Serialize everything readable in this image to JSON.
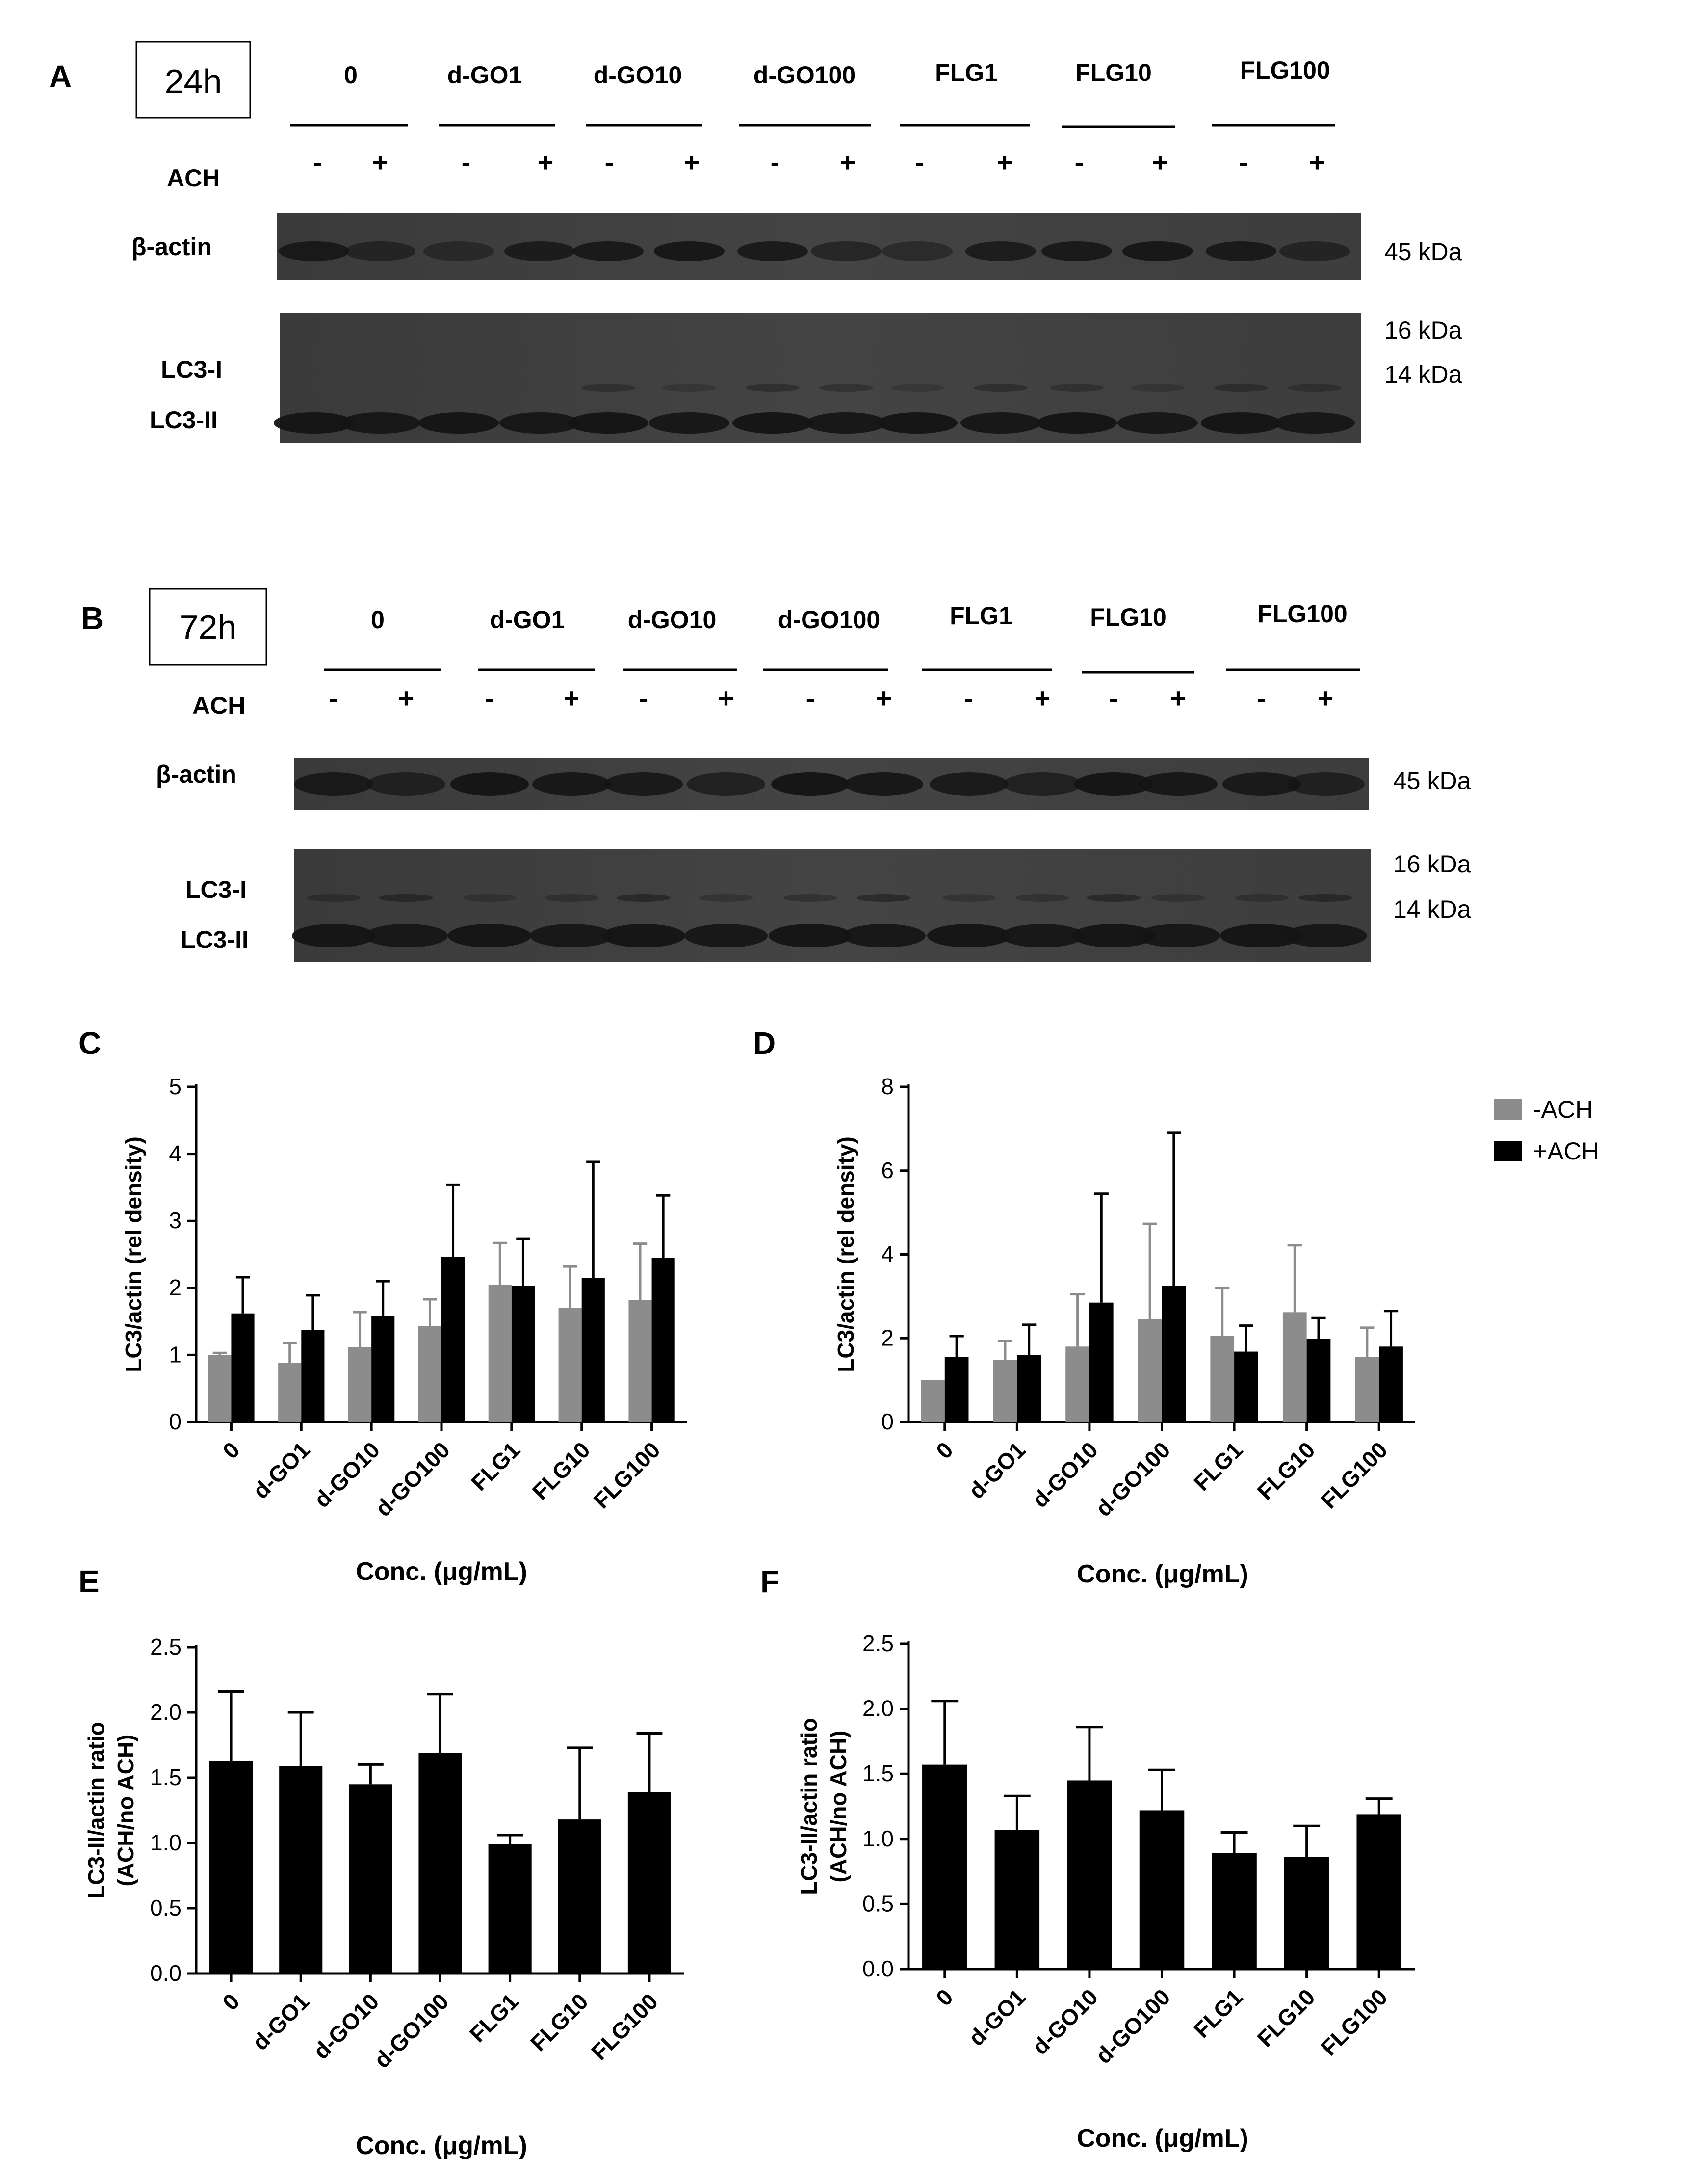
{
  "figure": {
    "panel_a": {
      "letter": "A",
      "timepoint": "24h",
      "groups": [
        "0",
        "d-GO1",
        "d-GO10",
        "d-GO100",
        "FLG1",
        "FLG10",
        "FLG100"
      ],
      "treatment_label": "ACH",
      "minus": "-",
      "plus": "+",
      "actin_label": "β-actin",
      "lc3i_label": "LC3-I",
      "lc3ii_label": "LC3-II",
      "mw_actin": "45 kDa",
      "mw_16": "16 kDa",
      "mw_14": "14 kDa"
    },
    "panel_b": {
      "letter": "B",
      "timepoint": "72h",
      "groups": [
        "0",
        "d-GO1",
        "d-GO10",
        "d-GO100",
        "FLG1",
        "FLG10",
        "FLG100"
      ],
      "treatment_label": "ACH",
      "minus": "-",
      "plus": "+",
      "actin_label": "β-actin",
      "lc3i_label": "LC3-I",
      "lc3ii_label": "LC3-II",
      "mw_actin": "45 kDa",
      "mw_16": "16 kDa",
      "mw_14": "14 kDa"
    },
    "legend": {
      "items": [
        {
          "label": "-ACH",
          "color": "#8c8c8c"
        },
        {
          "label": "+ACH",
          "color": "#000000"
        }
      ]
    },
    "colors": {
      "minus_ach": "#8c8c8c",
      "plus_ach": "#000000",
      "blot_background": "#3c3c3c"
    }
  },
  "chart_data": [
    {
      "id": "C",
      "letter": "C",
      "type": "bar",
      "categories": [
        "0",
        "d-GO1",
        "d-GO10",
        "d-GO100",
        "FLG1",
        "FLG10",
        "FLG100"
      ],
      "series": [
        {
          "name": "-ACH",
          "values": [
            1.0,
            0.88,
            1.12,
            1.43,
            2.05,
            1.7,
            1.82
          ],
          "errors": [
            0.03,
            0.3,
            0.52,
            0.4,
            0.62,
            0.62,
            0.84
          ]
        },
        {
          "name": "+ACH",
          "values": [
            1.62,
            1.37,
            1.58,
            2.46,
            2.03,
            2.15,
            2.45
          ],
          "errors": [
            0.54,
            0.52,
            0.52,
            1.08,
            0.7,
            1.73,
            0.93
          ]
        }
      ],
      "ylabel": "LC3/actin (rel density)",
      "xlabel": "Conc. (μg/mL)",
      "ylim": [
        0,
        5
      ],
      "yticks": [
        "0",
        "1",
        "2",
        "3",
        "4",
        "5"
      ]
    },
    {
      "id": "D",
      "letter": "D",
      "type": "bar",
      "categories": [
        "0",
        "d-GO1",
        "d-GO10",
        "d-GO100",
        "FLG1",
        "FLG10",
        "FLG100"
      ],
      "series": [
        {
          "name": "-ACH",
          "values": [
            1.0,
            1.48,
            1.8,
            2.45,
            2.05,
            2.62,
            1.55
          ],
          "errors": [
            0.0,
            0.45,
            1.25,
            2.28,
            1.15,
            1.6,
            0.7
          ]
        },
        {
          "name": "+ACH",
          "values": [
            1.55,
            1.6,
            2.85,
            3.25,
            1.68,
            1.98,
            1.8
          ],
          "errors": [
            0.5,
            0.72,
            2.6,
            3.65,
            0.62,
            0.5,
            0.85
          ]
        }
      ],
      "ylabel": "LC3/actin (rel density)",
      "xlabel": "Conc. (μg/mL)",
      "ylim": [
        0,
        8
      ],
      "yticks": [
        "0",
        "2",
        "4",
        "6",
        "8"
      ]
    },
    {
      "id": "E",
      "letter": "E",
      "type": "bar",
      "categories": [
        "0",
        "d-GO1",
        "d-GO10",
        "d-GO100",
        "FLG1",
        "FLG10",
        "FLG100"
      ],
      "series": [
        {
          "name": "",
          "values": [
            1.63,
            1.59,
            1.45,
            1.69,
            0.99,
            1.18,
            1.39
          ],
          "errors": [
            0.53,
            0.41,
            0.15,
            0.45,
            0.07,
            0.55,
            0.45
          ]
        }
      ],
      "ylabel": "LC3-II/actin ratio (ACH/no ACH)",
      "ylabel_line1": "LC3-II/actin ratio",
      "ylabel_line2": "(ACH/no ACH)",
      "xlabel": "Conc. (μg/mL)",
      "ylim": [
        0,
        2.5
      ],
      "yticks": [
        "0.0",
        "0.5",
        "1.0",
        "1.5",
        "2.0",
        "2.5"
      ]
    },
    {
      "id": "F",
      "letter": "F",
      "type": "bar",
      "categories": [
        "0",
        "d-GO1",
        "d-GO10",
        "d-GO100",
        "FLG1",
        "FLG10",
        "FLG100"
      ],
      "series": [
        {
          "name": "",
          "values": [
            1.57,
            1.07,
            1.45,
            1.22,
            0.89,
            0.86,
            1.19
          ],
          "errors": [
            0.49,
            0.26,
            0.41,
            0.31,
            0.16,
            0.24,
            0.12
          ]
        }
      ],
      "ylabel": "LC3-II/actin ratio (ACH/no ACH)",
      "ylabel_line1": "LC3-II/actin ratio",
      "ylabel_line2": "(ACH/no ACH)",
      "xlabel": "Conc. (μg/mL)",
      "ylim": [
        0,
        2.5
      ],
      "yticks": [
        "0.0",
        "0.5",
        "1.0",
        "1.5",
        "2.0",
        "2.5"
      ]
    }
  ]
}
